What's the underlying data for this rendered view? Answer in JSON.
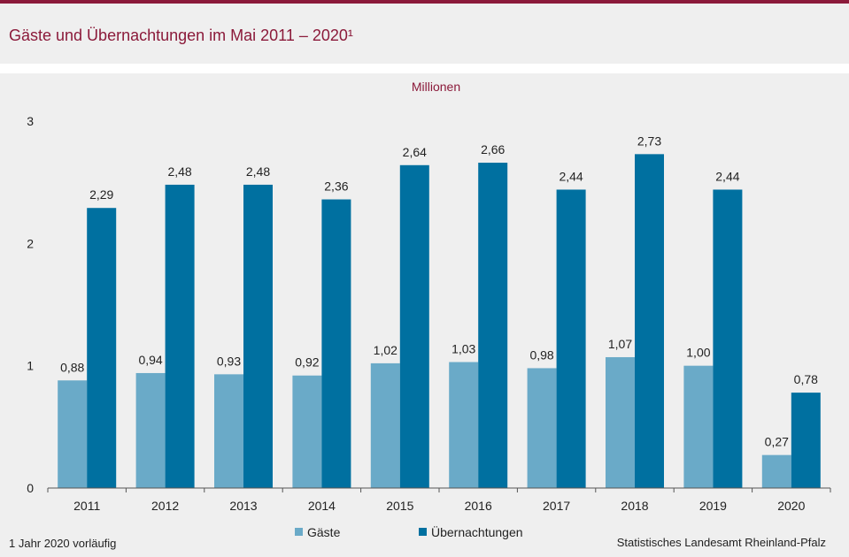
{
  "header": {
    "title": "Gäste und Übernachtungen im Mai 2011 – 2020¹"
  },
  "chart_data": {
    "type": "bar",
    "title": "Gäste und Übernachtungen im Mai 2011 – 2020¹",
    "unit": "Millionen",
    "categories": [
      "2011",
      "2012",
      "2013",
      "2014",
      "2015",
      "2016",
      "2017",
      "2018",
      "2019",
      "2020"
    ],
    "series": [
      {
        "name": "Gäste",
        "color": "#6aaac8",
        "values": [
          0.88,
          0.94,
          0.93,
          0.92,
          1.02,
          1.03,
          0.98,
          1.07,
          1.0,
          0.27
        ],
        "labels": [
          "0,88",
          "0,94",
          "0,93",
          "0,92",
          "1,02",
          "1,03",
          "0,98",
          "1,07",
          "1,00",
          "0,27"
        ]
      },
      {
        "name": "Übernachtungen",
        "color": "#0070a0",
        "values": [
          2.29,
          2.48,
          2.48,
          2.36,
          2.64,
          2.66,
          2.44,
          2.73,
          2.44,
          0.78
        ],
        "labels": [
          "2,29",
          "2,48",
          "2,48",
          "2,36",
          "2,64",
          "2,66",
          "2,44",
          "2,73",
          "2,44",
          "0,78"
        ]
      }
    ],
    "yticks": [
      0,
      1,
      2,
      3
    ],
    "ylim": [
      0,
      3
    ],
    "xlabel": "",
    "ylabel": "",
    "grid": false,
    "legend_position": "bottom"
  },
  "footer": {
    "footnote": "1 Jahr 2020 vorläufig",
    "source": "Statistisches Landesamt Rheinland-Pfalz"
  }
}
